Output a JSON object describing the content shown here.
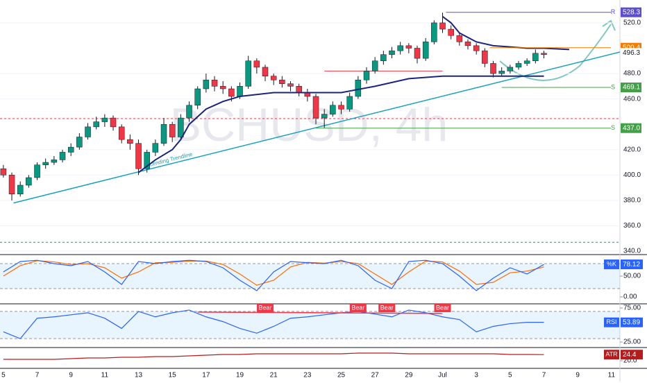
{
  "chart_data": {
    "type": "candlestick",
    "watermark": "BCHUSD, 4h",
    "x": [
      0,
      0.5,
      1,
      1.5,
      2,
      2.5,
      3,
      3.5,
      4,
      4.5,
      5,
      5.5,
      6,
      6.5,
      7,
      7.5,
      8,
      8.5,
      9,
      9.5,
      10,
      10.5,
      11,
      11.5,
      12,
      12.5,
      13,
      13.5,
      14,
      14.5,
      15,
      15.5,
      16,
      16.5,
      17,
      17.5,
      18,
      18.5,
      19,
      19.5,
      20,
      20.5,
      21,
      21.5,
      22,
      22.5,
      23,
      23.5,
      24,
      24.5,
      25,
      25.5,
      26,
      26.5,
      27,
      27.5,
      28,
      28.5,
      29,
      29.5,
      30,
      30.5,
      31,
      31.5,
      32
    ],
    "ohlc": [
      [
        405,
        408,
        398,
        400
      ],
      [
        400,
        402,
        380,
        385
      ],
      [
        385,
        395,
        383,
        392
      ],
      [
        392,
        400,
        390,
        398
      ],
      [
        398,
        410,
        396,
        408
      ],
      [
        408,
        413,
        405,
        410
      ],
      [
        410,
        415,
        408,
        412
      ],
      [
        412,
        420,
        410,
        418
      ],
      [
        418,
        425,
        415,
        422
      ],
      [
        422,
        433,
        420,
        430
      ],
      [
        430,
        441,
        428,
        438
      ],
      [
        438,
        446,
        436,
        442
      ],
      [
        442,
        448,
        438,
        445
      ],
      [
        445,
        447,
        435,
        438
      ],
      [
        438,
        440,
        425,
        428
      ],
      [
        428,
        432,
        420,
        425
      ],
      [
        425,
        428,
        400,
        405
      ],
      [
        405,
        420,
        402,
        418
      ],
      [
        418,
        428,
        415,
        425
      ],
      [
        425,
        445,
        423,
        440
      ],
      [
        440,
        442,
        426,
        430
      ],
      [
        430,
        448,
        428,
        445
      ],
      [
        445,
        458,
        442,
        455
      ],
      [
        455,
        470,
        452,
        468
      ],
      [
        468,
        480,
        465,
        475
      ],
      [
        475,
        478,
        466,
        470
      ],
      [
        470,
        474,
        464,
        468
      ],
      [
        468,
        470,
        458,
        462
      ],
      [
        462,
        473,
        460,
        470
      ],
      [
        470,
        494,
        468,
        490
      ],
      [
        490,
        492,
        480,
        485
      ],
      [
        485,
        487,
        474,
        478
      ],
      [
        478,
        480,
        471,
        475
      ],
      [
        475,
        478,
        469,
        472
      ],
      [
        472,
        474,
        466,
        470
      ],
      [
        470,
        472,
        462,
        465
      ],
      [
        465,
        468,
        458,
        462
      ],
      [
        462,
        464,
        440,
        445
      ],
      [
        445,
        452,
        437,
        448
      ],
      [
        448,
        458,
        446,
        455
      ],
      [
        455,
        458,
        448,
        452
      ],
      [
        452,
        465,
        450,
        462
      ],
      [
        462,
        478,
        460,
        475
      ],
      [
        475,
        485,
        472,
        482
      ],
      [
        482,
        493,
        480,
        490
      ],
      [
        490,
        498,
        487,
        495
      ],
      [
        495,
        501,
        492,
        498
      ],
      [
        498,
        505,
        495,
        502
      ],
      [
        502,
        504,
        496,
        500
      ],
      [
        500,
        502,
        488,
        492
      ],
      [
        492,
        508,
        490,
        505
      ],
      [
        505,
        522,
        503,
        520
      ],
      [
        520,
        528,
        512,
        515
      ],
      [
        515,
        518,
        507,
        510
      ],
      [
        510,
        512,
        502,
        505
      ],
      [
        505,
        507,
        499,
        502
      ],
      [
        502,
        504,
        495,
        498
      ],
      [
        498,
        500,
        485,
        488
      ],
      [
        488,
        490,
        477,
        480
      ],
      [
        480,
        485,
        478,
        482
      ],
      [
        482,
        487,
        480,
        485
      ],
      [
        485,
        490,
        483,
        488
      ],
      [
        488,
        492,
        486,
        490
      ],
      [
        490,
        499,
        488,
        496
      ],
      [
        496,
        498,
        492,
        495
      ]
    ],
    "xlim": [
      -0.2,
      36.5
    ],
    "ylim": [
      338.4,
      538
    ],
    "xticks": [
      {
        "value": 0,
        "label": "5"
      },
      {
        "value": 2,
        "label": "7"
      },
      {
        "value": 4,
        "label": "9"
      },
      {
        "value": 6,
        "label": "11"
      },
      {
        "value": 8,
        "label": "13"
      },
      {
        "value": 10,
        "label": "15"
      },
      {
        "value": 12,
        "label": "17"
      },
      {
        "value": 14,
        "label": "19"
      },
      {
        "value": 16,
        "label": "21"
      },
      {
        "value": 18,
        "label": "23"
      },
      {
        "value": 20,
        "label": "25"
      },
      {
        "value": 22,
        "label": "27"
      },
      {
        "value": 24,
        "label": "29"
      },
      {
        "value": 26,
        "label": "Jul"
      },
      {
        "value": 28,
        "label": "3"
      },
      {
        "value": 30,
        "label": "5"
      },
      {
        "value": 32,
        "label": "7"
      },
      {
        "value": 34,
        "label": "9"
      },
      {
        "value": 36,
        "label": "11"
      }
    ],
    "yticks": [
      {
        "value": 340,
        "label": "340.0"
      },
      {
        "value": 360,
        "label": "360.0"
      },
      {
        "value": 380,
        "label": "380.0"
      },
      {
        "value": 400,
        "label": "400.0"
      },
      {
        "value": 420,
        "label": "420.0"
      },
      {
        "value": 460,
        "label": "460.0"
      },
      {
        "value": 480,
        "label": "480.0"
      },
      {
        "value": 520,
        "label": "520.0"
      }
    ],
    "ma": {
      "color": "#1a237e",
      "x": [
        8,
        9,
        10,
        10.5,
        11,
        12,
        13,
        14,
        16,
        18,
        20,
        22,
        24,
        26,
        28,
        30,
        32
      ],
      "values": [
        402,
        412,
        420,
        428,
        440,
        452,
        458,
        462,
        465,
        465,
        465,
        470,
        476,
        478,
        478,
        478,
        478
      ]
    },
    "ma2": {
      "color": "#1a237e",
      "x": [
        26,
        26.5,
        27,
        28,
        29,
        30,
        31,
        32,
        33.5
      ],
      "values": [
        525,
        520,
        512,
        505,
        502,
        501,
        500,
        500,
        499
      ]
    },
    "trendline": {
      "label": "Ascending Trendline",
      "color": "#17a2b8",
      "x": [
        0.6,
        36.5
      ],
      "values": [
        378,
        497
      ]
    },
    "levels": [
      {
        "tag": "R",
        "value": 528.3,
        "color": "#5b4fcf",
        "start": 26.2
      },
      {
        "value": 500.4,
        "color": "#f57c00",
        "start": 28.8
      },
      {
        "tag": "S",
        "value": 469.1,
        "color": "#43a047",
        "start": 29.5
      },
      {
        "tag": "S",
        "value": {
          "value": 437,
          "label": "437.0"
        },
        "color": "#43a047",
        "start": 18.5
      }
    ],
    "current_price": 496.3,
    "hlines": [
      {
        "value": 444.5,
        "color": "#f23645",
        "start": -0.2,
        "end": 36.5
      },
      {
        "value": 347,
        "color": "#089981",
        "start": -0.2,
        "end": 36.5
      },
      {
        "value": 482,
        "color": "#f23645",
        "start": 19,
        "end": 26
      }
    ],
    "stoch": {
      "name": "%K",
      "value": 78.12,
      "ylim": [
        -15,
        98.3
      ],
      "band": [
        20,
        80
      ],
      "yticks": [
        {
          "value": 50,
          "label": "50.00"
        },
        {
          "value": 0,
          "label": "0.00"
        }
      ],
      "x": [
        0,
        1,
        2,
        3,
        4,
        5,
        6,
        7,
        8,
        9,
        10,
        11,
        12,
        13,
        14,
        15,
        16,
        17,
        18,
        19,
        20,
        21,
        22,
        23,
        24,
        25,
        26,
        27,
        28,
        29,
        30,
        31,
        32
      ],
      "k": [
        60,
        85,
        88,
        80,
        75,
        85,
        60,
        30,
        85,
        80,
        85,
        88,
        85,
        70,
        40,
        15,
        60,
        85,
        82,
        80,
        88,
        75,
        40,
        20,
        85,
        88,
        80,
        50,
        15,
        45,
        70,
        55,
        78
      ],
      "d": [
        50,
        75,
        87,
        84,
        78,
        80,
        70,
        45,
        60,
        82,
        83,
        86,
        86,
        78,
        55,
        28,
        40,
        72,
        83,
        81,
        85,
        80,
        55,
        30,
        60,
        86,
        84,
        62,
        30,
        35,
        58,
        62,
        72
      ]
    },
    "rsi": {
      "name": "RSI",
      "value": 53.89,
      "ylim": [
        17.9,
        79.1
      ],
      "band": [
        30,
        70
      ],
      "yticks": [
        {
          "value": 75,
          "label": "75.00"
        },
        {
          "value": 25,
          "label": "25.00"
        }
      ],
      "x": [
        0,
        1,
        2,
        3,
        4,
        5,
        6,
        7,
        8,
        9,
        10,
        11,
        12,
        13,
        14,
        15,
        16,
        17,
        18,
        19,
        20,
        21,
        22,
        23,
        24,
        25,
        26,
        27,
        28,
        29,
        30,
        31,
        32
      ],
      "values": [
        40,
        30,
        60,
        62,
        65,
        68,
        60,
        45,
        70,
        62,
        68,
        72,
        62,
        55,
        45,
        38,
        48,
        60,
        62,
        65,
        68,
        70,
        66,
        62,
        72,
        68,
        62,
        58,
        40,
        48,
        52,
        54,
        54
      ],
      "signals": {
        "x": [
          15.5,
          21,
          22.7,
          26
        ],
        "labels": [
          "Bear",
          "Bear",
          "Bear",
          "Bear"
        ]
      }
    },
    "atr": {
      "name": "ATR",
      "value": 24.4,
      "ylim": [
        14.5,
        28.5
      ],
      "yticks": [
        {
          "value": 20,
          "label": "20.0"
        }
      ],
      "x": [
        0,
        1,
        2,
        3,
        4,
        5,
        6,
        7,
        8,
        9,
        10,
        11,
        12,
        13,
        14,
        15,
        16,
        17,
        18,
        19,
        20,
        21,
        22,
        23,
        24,
        25,
        26,
        27,
        28,
        29,
        30,
        31,
        32
      ],
      "values": [
        21,
        21,
        21,
        21,
        21.5,
        22,
        22,
        22.5,
        22.5,
        23,
        23,
        23.5,
        24,
        24.5,
        24.5,
        25,
        25,
        25,
        25,
        25,
        25,
        25.5,
        25.5,
        25.5,
        25,
        25,
        25,
        25,
        25,
        25,
        24.5,
        24.5,
        24.4
      ]
    }
  }
}
